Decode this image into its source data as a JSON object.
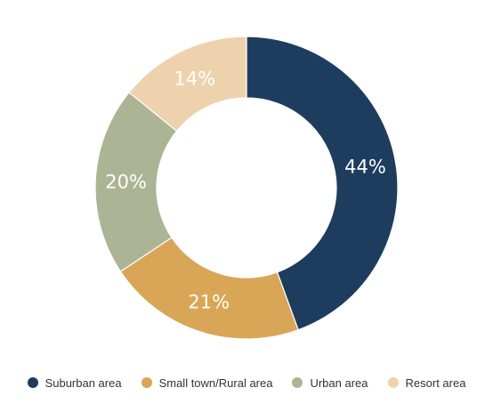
{
  "chart_data": {
    "type": "pie",
    "donut": true,
    "slices": [
      {
        "label": "Suburban area",
        "value": 44,
        "display": "44%",
        "color": "#1e3d5e",
        "text_color": "#ffffff"
      },
      {
        "label": "Small town/Rural area",
        "value": 21,
        "display": "21%",
        "color": "#d9a556",
        "text_color": "#ffffff"
      },
      {
        "label": "Urban area",
        "value": 20,
        "display": "20%",
        "color": "#abb596",
        "text_color": "#ffffff"
      },
      {
        "label": "Resort area",
        "value": 14,
        "display": "14%",
        "color": "#eed2ad",
        "text_color": "#ffffff"
      }
    ],
    "legend_position": "bottom"
  }
}
